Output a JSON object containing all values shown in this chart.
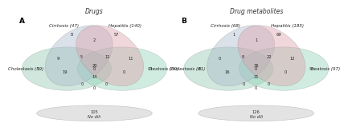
{
  "panel_A": {
    "title": "Drugs",
    "label": "A",
    "set_labels": [
      "Cirrhosis (47)",
      "Hepatitis (140)",
      "Cholestasis (59)",
      "Steatosis (60)"
    ],
    "numbers": {
      "cirr_only": "8",
      "hep_only": "57",
      "chol_only": "1",
      "steat_only": "3",
      "cirr_hep": "2",
      "cirr_chol": "9",
      "hep_steat": "11",
      "chol_steat_only": "0",
      "cirr_hep_chol": "5",
      "cirr_hep_steat": "12",
      "cirr_chol_steat": "19",
      "hep_chol_steat": "0",
      "all_four": "20",
      "chol_steat_two": "14",
      "bot_left": "0",
      "bot_right": "0",
      "bot_chol_steat": "0"
    },
    "no_dili": "105"
  },
  "panel_B": {
    "title": "Drug metabolites",
    "label": "B",
    "set_labels": [
      "Cirrhosis (68)",
      "Hepatitis (185)",
      "Cholestasis (81)",
      "Steatosis (97)"
    ],
    "numbers": {
      "cirr_only": "1",
      "hep_only": "69",
      "chol_only": "0",
      "steat_only": "6",
      "cirr_hep": "1",
      "cirr_chol": "0",
      "hep_steat": "12",
      "chol_steat_only": "0",
      "cirr_hep_chol": "8",
      "cirr_hep_steat": "22",
      "cirr_chol_steat": "16",
      "hep_chol_steat": "0",
      "all_four": "36",
      "chol_steat_two": "21",
      "bot_left": "0",
      "bot_right": "0",
      "bot_chol_steat": "0"
    },
    "no_dili": "126"
  },
  "colors": {
    "cirrhosis": "#aab8cc",
    "hepatitis": "#dda0aa",
    "cholestasis": "#8ec8b0",
    "steatosis": "#90d4b8"
  },
  "alpha": 0.42,
  "bg": "#ffffff"
}
